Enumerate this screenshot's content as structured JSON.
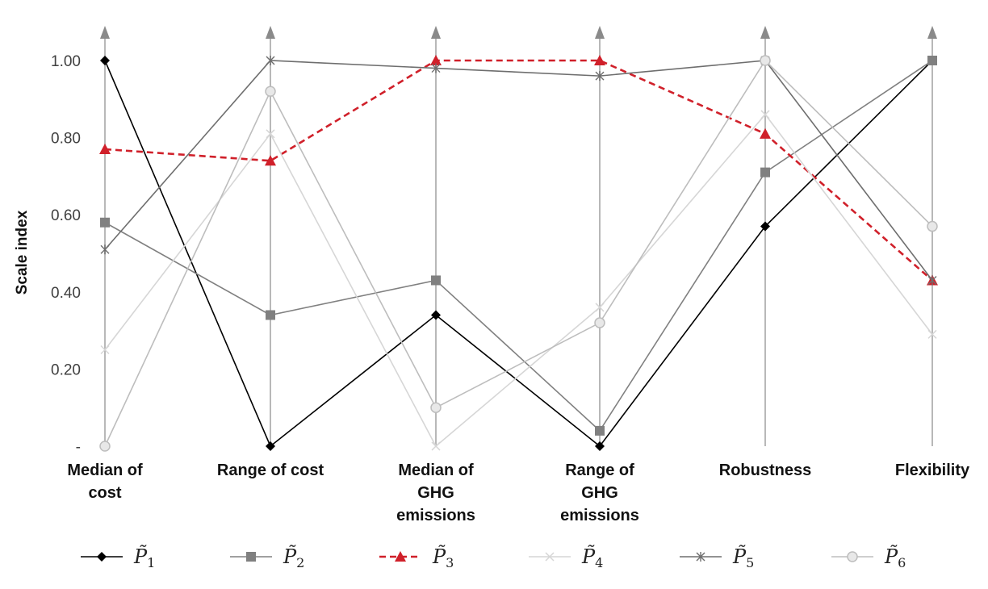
{
  "chart_data": {
    "type": "line",
    "title": "",
    "xlabel": "",
    "ylabel": "Scale index",
    "ylim": [
      0,
      1
    ],
    "yticks": [
      {
        "value": 0,
        "label": "-"
      },
      {
        "value": 0.2,
        "label": "0.20"
      },
      {
        "value": 0.4,
        "label": "0.40"
      },
      {
        "value": 0.6,
        "label": "0.60"
      },
      {
        "value": 0.8,
        "label": "0.80"
      },
      {
        "value": 1.0,
        "label": "1.00"
      }
    ],
    "categories": [
      [
        "Median of",
        "cost"
      ],
      [
        "Range of cost"
      ],
      [
        "Median of",
        "GHG",
        "emissions"
      ],
      [
        "Range of",
        "GHG",
        "emissions"
      ],
      [
        "Robustness"
      ],
      [
        "Flexibility"
      ]
    ],
    "legend_position": "bottom",
    "series": [
      {
        "name": "P̃",
        "sub": "1",
        "color": "#000000",
        "dash": false,
        "marker": "diamond",
        "width": 1.6,
        "values": [
          1.0,
          0.0,
          0.34,
          0.0,
          0.57,
          1.0
        ]
      },
      {
        "name": "P̃",
        "sub": "2",
        "color": "#808080",
        "dash": false,
        "marker": "square",
        "width": 1.6,
        "values": [
          0.58,
          0.34,
          0.43,
          0.04,
          0.71,
          1.0
        ]
      },
      {
        "name": "P̃",
        "sub": "3",
        "color": "#d0202a",
        "dash": true,
        "marker": "triangle",
        "width": 2.6,
        "values": [
          0.77,
          0.74,
          1.0,
          1.0,
          0.81,
          0.43
        ]
      },
      {
        "name": "P̃",
        "sub": "4",
        "color": "#d6d6d6",
        "dash": false,
        "marker": "x",
        "width": 1.6,
        "values": [
          0.25,
          0.81,
          0.0,
          0.36,
          0.86,
          0.29
        ]
      },
      {
        "name": "P̃",
        "sub": "5",
        "color": "#6e6e6e",
        "dash": false,
        "marker": "star",
        "width": 1.6,
        "values": [
          0.51,
          1.0,
          0.98,
          0.96,
          1.0,
          0.43
        ]
      },
      {
        "name": "P̃",
        "sub": "6",
        "color": "#bdbdbd",
        "dash": false,
        "marker": "circle",
        "width": 1.6,
        "values": [
          0.0,
          0.92,
          0.1,
          0.32,
          1.0,
          0.57
        ]
      }
    ]
  }
}
